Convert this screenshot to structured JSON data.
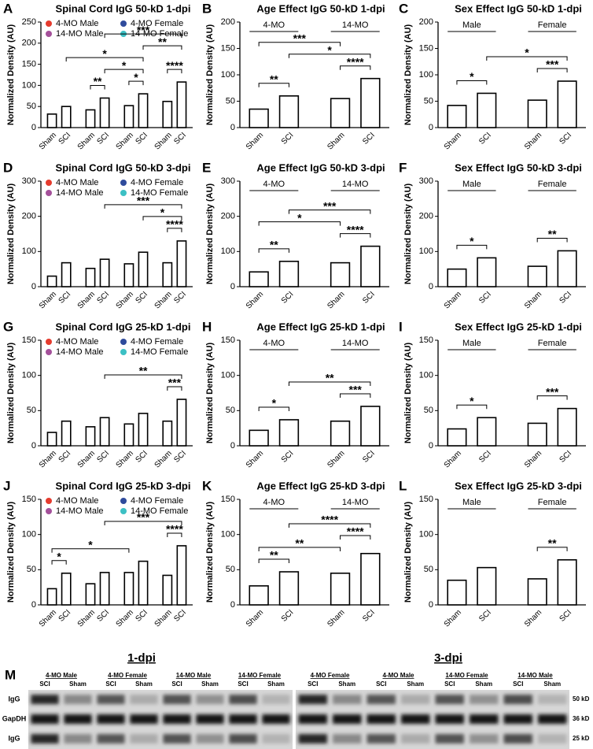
{
  "chart_data": [
    {
      "panel": "A",
      "type": "bar",
      "title": "Spinal Cord IgG 50-kD 1-dpi",
      "ylabel": "Normalized Density (AU)",
      "categories": [
        "Sham",
        "SCI",
        "Sham",
        "SCI",
        "Sham",
        "SCI",
        "Sham",
        "SCI"
      ],
      "values": [
        32,
        50,
        42,
        70,
        52,
        80,
        62,
        108
      ],
      "ylim": [
        0,
        250
      ],
      "yticks": [
        0,
        50,
        100,
        150,
        200,
        250
      ],
      "legend": [
        {
          "name": "4-MO Male",
          "color": "#e53b2e"
        },
        {
          "name": "4-MO Female",
          "color": "#2f4b9c"
        },
        {
          "name": "14-MO Male",
          "color": "#a4509a"
        },
        {
          "name": "14-MO Female",
          "color": "#3cc0c4"
        }
      ],
      "annotations": [
        {
          "label": "**",
          "from": 2,
          "to": 3
        },
        {
          "label": "*",
          "from": 4,
          "to": 5
        },
        {
          "label": "****",
          "from": 6,
          "to": 7
        },
        {
          "label": "*",
          "from": 3,
          "to": 5
        },
        {
          "label": "*",
          "from": 1,
          "to": 5
        },
        {
          "label": "**",
          "from": 5,
          "to": 7
        },
        {
          "label": "***",
          "from": 3,
          "to": 7
        }
      ]
    },
    {
      "panel": "B",
      "type": "bar",
      "title": "Age Effect IgG 50-kD 1-dpi",
      "ylabel": "Normalized Density (AU)",
      "categories": [
        "Sham",
        "SCI",
        "Sham",
        "SCI"
      ],
      "values": [
        35,
        60,
        55,
        93
      ],
      "ylim": [
        0,
        200
      ],
      "yticks": [
        0,
        50,
        100,
        150,
        200
      ],
      "groups": [
        "4-MO",
        "14-MO"
      ],
      "annotations": [
        {
          "label": "**",
          "from": 0,
          "to": 1
        },
        {
          "label": "****",
          "from": 2,
          "to": 3
        },
        {
          "label": "*",
          "from": 1,
          "to": 3
        },
        {
          "label": "***",
          "from": 0,
          "to": 2
        }
      ]
    },
    {
      "panel": "C",
      "type": "bar",
      "title": "Sex Effect IgG 50-kD 1-dpi",
      "ylabel": "Normalized Density (AU)",
      "categories": [
        "Sham",
        "SCI",
        "Sham",
        "SCI"
      ],
      "values": [
        42,
        65,
        52,
        88
      ],
      "ylim": [
        0,
        200
      ],
      "yticks": [
        0,
        50,
        100,
        150,
        200
      ],
      "groups": [
        "Male",
        "Female"
      ],
      "annotations": [
        {
          "label": "*",
          "from": 0,
          "to": 1
        },
        {
          "label": "***",
          "from": 2,
          "to": 3
        },
        {
          "label": "*",
          "from": 1,
          "to": 3
        }
      ]
    },
    {
      "panel": "D",
      "type": "bar",
      "title": "Spinal Cord IgG 50-kD 3-dpi",
      "ylabel": "Normalized Density (AU)",
      "categories": [
        "Sham",
        "SCI",
        "Sham",
        "SCI",
        "Sham",
        "SCI",
        "Sham",
        "SCI"
      ],
      "values": [
        30,
        68,
        52,
        78,
        65,
        98,
        68,
        130
      ],
      "ylim": [
        0,
        300
      ],
      "yticks": [
        0,
        100,
        200,
        300
      ],
      "legend": [
        {
          "name": "4-MO Male",
          "color": "#e53b2e"
        },
        {
          "name": "4-MO Female",
          "color": "#2f4b9c"
        },
        {
          "name": "14-MO Male",
          "color": "#a4509a"
        },
        {
          "name": "14-MO Female",
          "color": "#3cc0c4"
        }
      ],
      "annotations": [
        {
          "label": "****",
          "from": 6,
          "to": 7
        },
        {
          "label": "*",
          "from": 5,
          "to": 7
        },
        {
          "label": "***",
          "from": 3,
          "to": 7
        }
      ]
    },
    {
      "panel": "E",
      "type": "bar",
      "title": "Age Effect IgG 50-kD 3-dpi",
      "ylabel": "Normalized Density (AU)",
      "categories": [
        "Sham",
        "SCI",
        "Sham",
        "SCI"
      ],
      "values": [
        42,
        72,
        68,
        115
      ],
      "ylim": [
        0,
        300
      ],
      "yticks": [
        0,
        100,
        200,
        300
      ],
      "groups": [
        "4-MO",
        "14-MO"
      ],
      "annotations": [
        {
          "label": "**",
          "from": 0,
          "to": 1
        },
        {
          "label": "****",
          "from": 2,
          "to": 3
        },
        {
          "label": "*",
          "from": 0,
          "to": 2
        },
        {
          "label": "***",
          "from": 1,
          "to": 3
        }
      ]
    },
    {
      "panel": "F",
      "type": "bar",
      "title": "Sex Effect IgG 50-kD 3-dpi",
      "ylabel": "Normalized Density (AU)",
      "categories": [
        "Sham",
        "SCI",
        "Sham",
        "SCI"
      ],
      "values": [
        50,
        82,
        58,
        102
      ],
      "ylim": [
        0,
        300
      ],
      "yticks": [
        0,
        100,
        200,
        300
      ],
      "groups": [
        "Male",
        "Female"
      ],
      "annotations": [
        {
          "label": "*",
          "from": 0,
          "to": 1
        },
        {
          "label": "**",
          "from": 2,
          "to": 3
        }
      ]
    },
    {
      "panel": "G",
      "type": "bar",
      "title": "Spinal Cord IgG 25-kD 1-dpi",
      "ylabel": "Normalized Density (AU)",
      "categories": [
        "Sham",
        "SCI",
        "Sham",
        "SCI",
        "Sham",
        "SCI",
        "Sham",
        "SCI"
      ],
      "values": [
        19,
        35,
        27,
        40,
        31,
        46,
        35,
        66
      ],
      "ylim": [
        0,
        150
      ],
      "yticks": [
        0,
        50,
        100,
        150
      ],
      "legend": [
        {
          "name": "4-MO Male",
          "color": "#e53b2e"
        },
        {
          "name": "4-MO Female",
          "color": "#2f4b9c"
        },
        {
          "name": "14-MO Male",
          "color": "#a4509a"
        },
        {
          "name": "14-MO Female",
          "color": "#3cc0c4"
        }
      ],
      "annotations": [
        {
          "label": "***",
          "from": 6,
          "to": 7
        },
        {
          "label": "**",
          "from": 3,
          "to": 7
        }
      ]
    },
    {
      "panel": "H",
      "type": "bar",
      "title": "Age Effect IgG 25-kD 1-dpi",
      "ylabel": "Normalized Density (AU)",
      "categories": [
        "Sham",
        "SCI",
        "Sham",
        "SCI"
      ],
      "values": [
        22,
        37,
        35,
        56
      ],
      "ylim": [
        0,
        150
      ],
      "yticks": [
        0,
        50,
        100,
        150
      ],
      "groups": [
        "4-MO",
        "14-MO"
      ],
      "annotations": [
        {
          "label": "*",
          "from": 0,
          "to": 1
        },
        {
          "label": "***",
          "from": 2,
          "to": 3
        },
        {
          "label": "**",
          "from": 1,
          "to": 3
        }
      ]
    },
    {
      "panel": "I",
      "type": "bar",
      "title": "Sex Effect IgG 25-kD 1-dpi",
      "ylabel": "Normalized Density (AU)",
      "categories": [
        "Sham",
        "SCI",
        "Sham",
        "SCI"
      ],
      "values": [
        24,
        40,
        32,
        53
      ],
      "ylim": [
        0,
        150
      ],
      "yticks": [
        0,
        50,
        100,
        150
      ],
      "groups": [
        "Male",
        "Female"
      ],
      "annotations": [
        {
          "label": "*",
          "from": 0,
          "to": 1
        },
        {
          "label": "***",
          "from": 2,
          "to": 3
        }
      ]
    },
    {
      "panel": "J",
      "type": "bar",
      "title": "Spinal Cord IgG 25-kD 3-dpi",
      "ylabel": "Normalized Density (AU)",
      "categories": [
        "Sham",
        "SCI",
        "Sham",
        "SCI",
        "Sham",
        "SCI",
        "Sham",
        "SCI"
      ],
      "values": [
        23,
        45,
        30,
        46,
        46,
        62,
        42,
        84
      ],
      "ylim": [
        0,
        150
      ],
      "yticks": [
        0,
        50,
        100,
        150
      ],
      "legend": [
        {
          "name": "4-MO Male",
          "color": "#e53b2e"
        },
        {
          "name": "4-MO Female",
          "color": "#2f4b9c"
        },
        {
          "name": "14-MO Male",
          "color": "#a4509a"
        },
        {
          "name": "14-MO Female",
          "color": "#3cc0c4"
        }
      ],
      "annotations": [
        {
          "label": "*",
          "from": 0,
          "to": 1
        },
        {
          "label": "*",
          "from": 0,
          "to": 4
        },
        {
          "label": "****",
          "from": 6,
          "to": 7
        },
        {
          "label": "***",
          "from": 3,
          "to": 7
        }
      ]
    },
    {
      "panel": "K",
      "type": "bar",
      "title": "Age Effect IgG 25-kD 3-dpi",
      "ylabel": "Normalized Density (AU)",
      "categories": [
        "Sham",
        "SCI",
        "Sham",
        "SCI"
      ],
      "values": [
        27,
        47,
        45,
        73
      ],
      "ylim": [
        0,
        150
      ],
      "yticks": [
        0,
        50,
        100,
        150
      ],
      "groups": [
        "4-MO",
        "14-MO"
      ],
      "annotations": [
        {
          "label": "**",
          "from": 0,
          "to": 1
        },
        {
          "label": "**",
          "from": 0,
          "to": 2
        },
        {
          "label": "****",
          "from": 2,
          "to": 3
        },
        {
          "label": "****",
          "from": 1,
          "to": 3
        }
      ]
    },
    {
      "panel": "L",
      "type": "bar",
      "title": "Sex Effect IgG 25-kD 3-dpi",
      "ylabel": "Normalized Density (AU)",
      "categories": [
        "Sham",
        "SCI",
        "Sham",
        "SCI"
      ],
      "values": [
        35,
        53,
        37,
        64
      ],
      "ylim": [
        0,
        150
      ],
      "yticks": [
        0,
        50,
        100,
        150
      ],
      "groups": [
        "Male",
        "Female"
      ],
      "annotations": [
        {
          "label": "**",
          "from": 2,
          "to": 3
        }
      ]
    }
  ],
  "footer": {
    "left": "1-dpi",
    "right": "3-dpi"
  },
  "blot": {
    "panel": "M",
    "left": {
      "groups": [
        "4-MO Male",
        "4-MO Female",
        "14-MO Male",
        "14-MO Female"
      ],
      "lanes": [
        "SCI",
        "Sham",
        "SCI",
        "Sham",
        "SCI",
        "Sham",
        "SCI",
        "Sham"
      ]
    },
    "right": {
      "groups": [
        "4-MO Female",
        "4-MO Male",
        "14-MO Female",
        "14-MO Male"
      ],
      "lanes": [
        "SCI",
        "Sham",
        "SCI",
        "Sham",
        "SCI",
        "Sham",
        "SCI",
        "Sham"
      ]
    },
    "rows": [
      "IgG",
      "GapDH",
      "IgG"
    ],
    "markers": [
      "50 kD",
      "36 kD",
      "25 kD"
    ]
  }
}
